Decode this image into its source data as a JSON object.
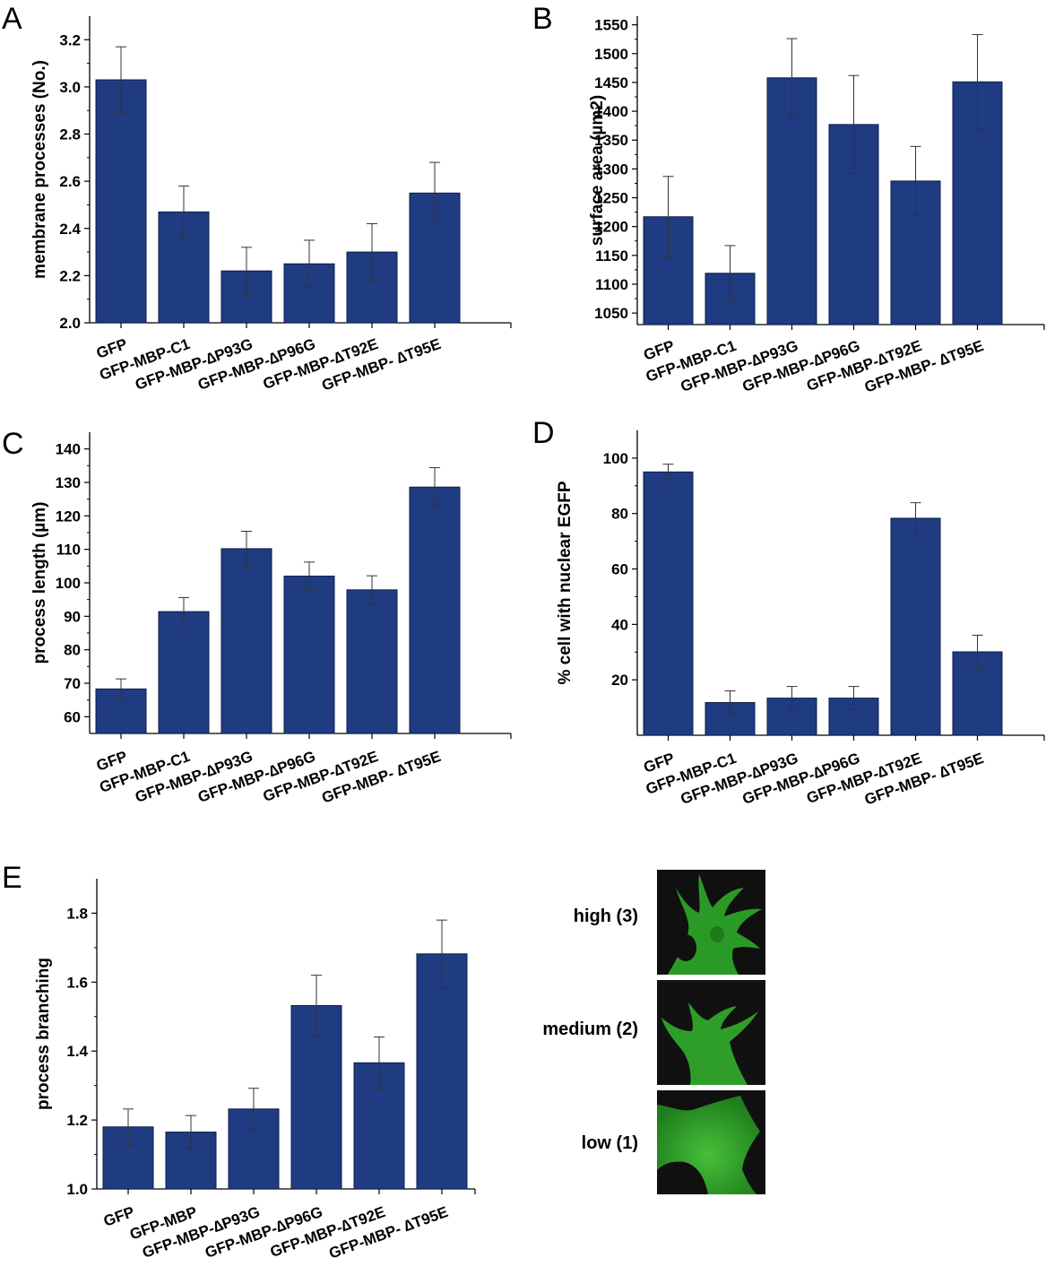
{
  "chart_data": [
    {
      "panel": "A",
      "type": "bar",
      "ylabel": "membrane processes (No.)",
      "categories": [
        "GFP",
        "GFP-MBP-C1",
        "GFP-MBP-∆P93G",
        "GFP-MBP-∆P96G",
        "GFP-MBP-∆T92E",
        "GFP-MBP- ∆T95E"
      ],
      "values": [
        3.03,
        2.47,
        2.22,
        2.25,
        2.3,
        2.55
      ],
      "errors": [
        0.14,
        0.11,
        0.1,
        0.1,
        0.12,
        0.13
      ],
      "ylim": [
        2.0,
        3.3
      ],
      "yticks": [
        2.0,
        2.2,
        2.4,
        2.6,
        2.8,
        3.0,
        3.2
      ],
      "ytick_labels": [
        "2.0",
        "2.2",
        "2.4",
        "2.6",
        "2.8",
        "3.0",
        "3.2"
      ],
      "color": "#1f3b82"
    },
    {
      "panel": "B",
      "type": "bar",
      "ylabel": "surface area (µm2)",
      "categories": [
        "GFP",
        "GFP-MBP-C1",
        "GFP-MBP-∆P93G",
        "GFP-MBP-∆P96G",
        "GFP-MBP-∆T92E",
        "GFP-MBP- ∆T95E"
      ],
      "values": [
        1217,
        1119,
        1458,
        1377,
        1279,
        1451
      ],
      "errors": [
        70,
        48,
        68,
        85,
        60,
        82
      ],
      "ylim": [
        1030,
        1565
      ],
      "yticks": [
        1050,
        1100,
        1150,
        1200,
        1250,
        1300,
        1350,
        1400,
        1450,
        1500,
        1550
      ],
      "ytick_labels": [
        "1050",
        "1100",
        "1150",
        "1200",
        "1250",
        "1300",
        "1350",
        "1400",
        "1450",
        "1500",
        "1550"
      ],
      "color": "#1f3b82"
    },
    {
      "panel": "C",
      "type": "bar",
      "ylabel": "process length (µm)",
      "categories": [
        "GFP",
        "GFP-MBP-C1",
        "GFP-MBP-∆P93G",
        "GFP-MBP-∆P96G",
        "GFP-MBP-∆T92E",
        "GFP-MBP- ∆T95E"
      ],
      "values": [
        68.3,
        91.4,
        110.2,
        102.0,
        97.9,
        128.6
      ],
      "errors": [
        3.0,
        4.2,
        5.2,
        4.2,
        4.2,
        5.8
      ],
      "ylim": [
        55,
        145
      ],
      "yticks": [
        60,
        70,
        80,
        90,
        100,
        110,
        120,
        130,
        140
      ],
      "ytick_labels": [
        "60",
        "70",
        "80",
        "90",
        "100",
        "110",
        "120",
        "130",
        "140"
      ],
      "color": "#1f3b82"
    },
    {
      "panel": "D",
      "type": "bar",
      "ylabel": "% cell with nuclear EGFP",
      "categories": [
        "GFP",
        "GFP-MBP-C1",
        "GFP-MBP-∆P93G",
        "GFP-MBP-∆P96G",
        "GFP-MBP-∆T92E",
        "GFP-MBP- ∆T95E"
      ],
      "values": [
        95.0,
        11.8,
        13.4,
        13.4,
        78.3,
        30.1
      ],
      "errors": [
        2.8,
        4.2,
        4.2,
        4.2,
        5.6,
        6.0
      ],
      "ylim": [
        0,
        110
      ],
      "yticks": [
        20,
        40,
        60,
        80,
        100
      ],
      "ytick_labels": [
        "20",
        "40",
        "60",
        "80",
        "100"
      ],
      "color": "#1f3b82"
    },
    {
      "panel": "E",
      "type": "bar",
      "ylabel": "process branching",
      "categories": [
        "GFP",
        "GFP-MBP",
        "GFP-MBP-∆P93G",
        "GFP-MBP-∆P96G",
        "GFP-MBP-∆T92E",
        "GFP-MBP- ∆T95E"
      ],
      "values": [
        1.18,
        1.165,
        1.232,
        1.532,
        1.366,
        1.682
      ],
      "errors": [
        0.052,
        0.048,
        0.06,
        0.088,
        0.075,
        0.098
      ],
      "ylim": [
        1.0,
        1.9
      ],
      "yticks": [
        1.0,
        1.2,
        1.4,
        1.6,
        1.8
      ],
      "ytick_labels": [
        "1.0",
        "1.2",
        "1.4",
        "1.6",
        "1.8"
      ],
      "color": "#1f3b82"
    }
  ],
  "micrographs": [
    {
      "label": "high (3)",
      "image": "fluorescent-cell-many-branches"
    },
    {
      "label": "medium (2)",
      "image": "fluorescent-cell-some-branches"
    },
    {
      "label": "low (1)",
      "image": "fluorescent-cell-few-branches"
    }
  ],
  "colors": {
    "bar": "#1f3b82",
    "bar_edge": "#0e1e4a",
    "micrograph_bg": "#101010",
    "cell": "#2fa52a"
  }
}
